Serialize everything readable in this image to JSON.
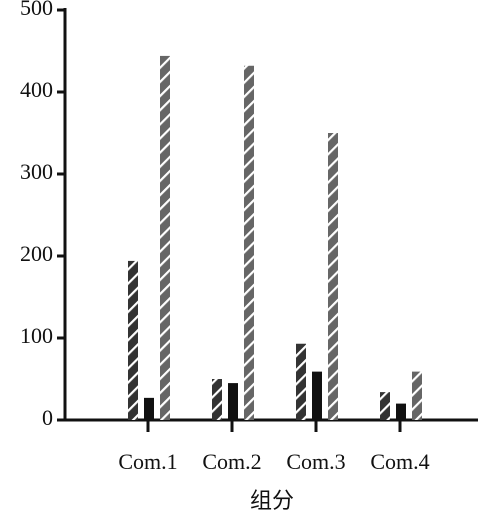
{
  "chart_data": {
    "type": "bar",
    "xlabel": "组分",
    "categories": [
      "Com.1",
      "Com.2",
      "Com.3",
      "Com.4"
    ],
    "series": [
      {
        "color": "#333333",
        "hatch": true,
        "values": [
          194,
          50,
          93,
          34
        ]
      },
      {
        "color": "#111111",
        "hatch": false,
        "values": [
          27,
          45,
          59,
          20
        ]
      },
      {
        "color": "#666666",
        "hatch": true,
        "values": [
          444,
          432,
          350,
          59
        ]
      }
    ],
    "ylim": [
      0,
      500
    ],
    "yticks": [
      0,
      100,
      200,
      300,
      400,
      500
    ],
    "grid": false
  }
}
